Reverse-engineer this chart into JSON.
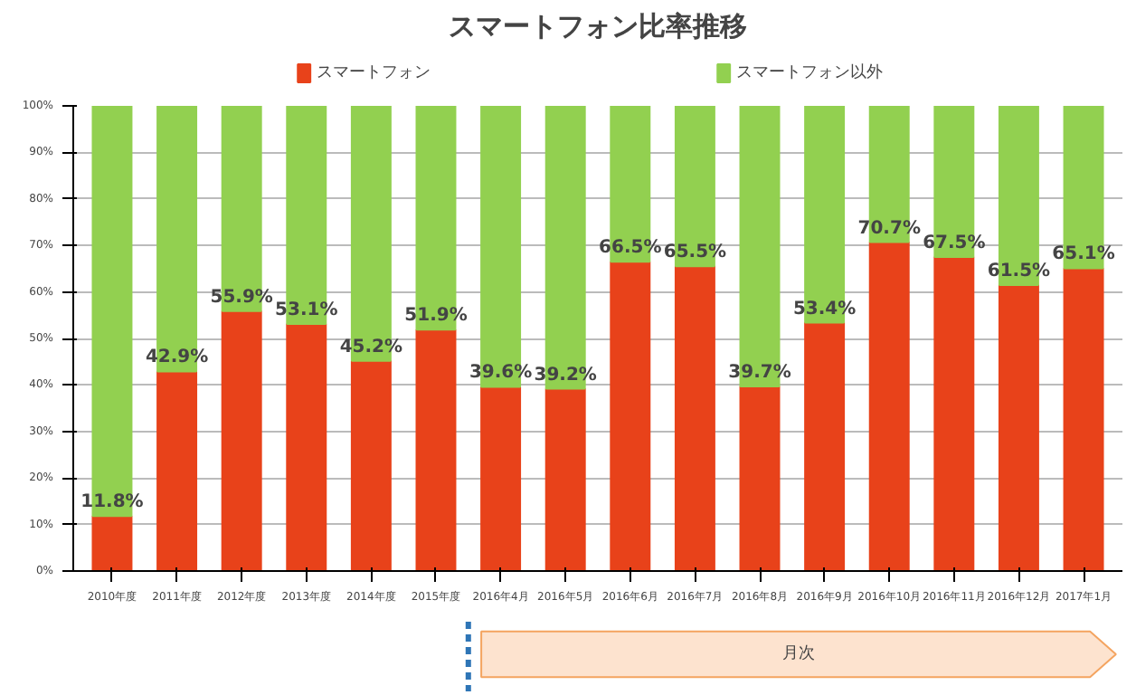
{
  "chart_data": {
    "type": "bar",
    "title": "スマートフォン比率推移",
    "stacked": true,
    "categories": [
      "2010年度",
      "2011年度",
      "2012年度",
      "2013年度",
      "2014年度",
      "2015年度",
      "2016年4月",
      "2016年5月",
      "2016年6月",
      "2016年7月",
      "2016年8月",
      "2016年9月",
      "2016年10月",
      "2016年11月",
      "2016年12月",
      "2017年1月"
    ],
    "series": [
      {
        "name": "スマートフォン",
        "color": "#e8421a",
        "values": [
          11.8,
          42.9,
          55.9,
          53.1,
          45.2,
          51.9,
          39.6,
          39.2,
          66.5,
          65.5,
          39.7,
          53.4,
          70.7,
          67.5,
          61.5,
          65.1
        ],
        "value_labels": [
          "11.8%",
          "42.9%",
          "55.9%",
          "53.1%",
          "45.2%",
          "51.9%",
          "39.6%",
          "39.2%",
          "66.5%",
          "65.5%",
          "39.7%",
          "53.4%",
          "70.7%",
          "67.5%",
          "61.5%",
          "65.1%"
        ]
      },
      {
        "name": "スマートフォン以外",
        "color": "#92d050",
        "values": [
          88.2,
          57.1,
          44.1,
          46.9,
          54.8,
          48.1,
          60.4,
          60.8,
          33.5,
          34.5,
          60.3,
          46.6,
          29.3,
          32.5,
          38.5,
          34.9
        ]
      }
    ],
    "ylim": [
      0,
      100
    ],
    "yticks": [
      {
        "value": 0,
        "label": "0%"
      },
      {
        "value": 10,
        "label": "10%"
      },
      {
        "value": 20,
        "label": "20%"
      },
      {
        "value": 30,
        "label": "30%"
      },
      {
        "value": 40,
        "label": "40%"
      },
      {
        "value": 50,
        "label": "50%"
      },
      {
        "value": 60,
        "label": "60%"
      },
      {
        "value": 70,
        "label": "70%"
      },
      {
        "value": 80,
        "label": "80%"
      },
      {
        "value": 90,
        "label": "90%"
      },
      {
        "value": 100,
        "label": "100%"
      }
    ],
    "grid": "y",
    "legend": "top",
    "annotations": [
      "月次"
    ]
  }
}
